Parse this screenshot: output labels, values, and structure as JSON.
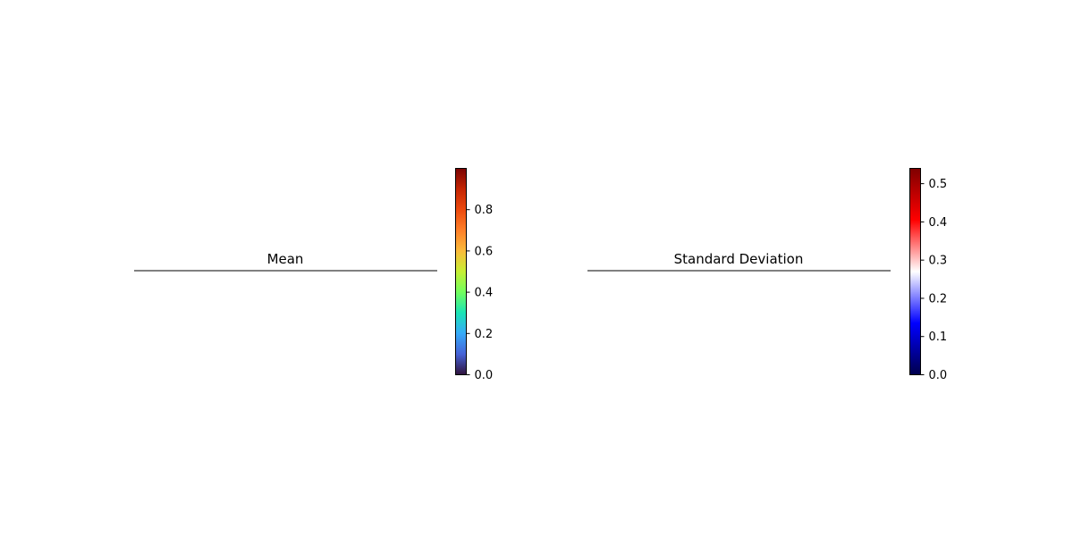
{
  "chart_data": [
    {
      "type": "heatmap",
      "title": "Mean",
      "colormap": "turbo",
      "colorbar": {
        "range": [
          0,
          1.0
        ],
        "ticks": [
          0.0,
          0.2,
          0.4,
          0.6,
          0.8
        ],
        "tick_labels": [
          "0.0",
          "0.2",
          "0.4",
          "0.6",
          "0.8"
        ],
        "colors": [
          "#30123b",
          "#4662d7",
          "#36aaf9",
          "#1ae4b6",
          "#72fe5e",
          "#c7ef34",
          "#fabb3b",
          "#fe8029",
          "#ec4a0e",
          "#c42503",
          "#7a0403"
        ]
      }
    },
    {
      "type": "heatmap",
      "title": "Standard Deviation",
      "colormap": "seismic",
      "colorbar": {
        "range": [
          0,
          0.54
        ],
        "ticks": [
          0.0,
          0.1,
          0.2,
          0.3,
          0.4,
          0.5
        ],
        "tick_labels": [
          "0.0",
          "0.1",
          "0.2",
          "0.3",
          "0.4",
          "0.5"
        ],
        "colors": [
          "#00004c",
          "#0000ff",
          "#ffffff",
          "#ff0000",
          "#7f0000"
        ]
      }
    }
  ]
}
